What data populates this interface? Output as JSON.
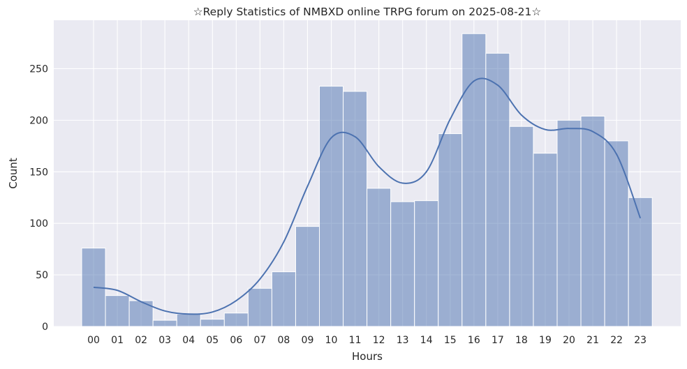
{
  "chart_data": {
    "type": "bar",
    "title": "☆Reply Statistics of NMBXD online TRPG forum on 2025-08-21☆",
    "xlabel": "Hours",
    "ylabel": "Count",
    "categories": [
      "00",
      "01",
      "02",
      "03",
      "04",
      "05",
      "06",
      "07",
      "08",
      "09",
      "10",
      "11",
      "12",
      "13",
      "14",
      "15",
      "16",
      "17",
      "18",
      "19",
      "20",
      "21",
      "22",
      "23"
    ],
    "values": [
      76,
      30,
      25,
      6,
      12,
      7,
      13,
      37,
      53,
      97,
      233,
      228,
      134,
      121,
      122,
      187,
      284,
      265,
      194,
      168,
      200,
      204,
      180,
      125
    ],
    "kde": [
      38,
      35,
      24,
      15,
      12,
      14,
      25,
      46,
      82,
      136,
      183,
      184,
      155,
      139,
      150,
      201,
      238,
      234,
      205,
      191,
      192,
      189,
      167,
      105
    ],
    "ylim": [
      0,
      297
    ],
    "yticks": [
      0,
      50,
      100,
      150,
      200,
      250
    ],
    "grid": true,
    "colors": {
      "bar": "#4c72b0",
      "kde": "#4c72b0",
      "background": "#eaeaf2",
      "grid": "#ffffff"
    }
  }
}
